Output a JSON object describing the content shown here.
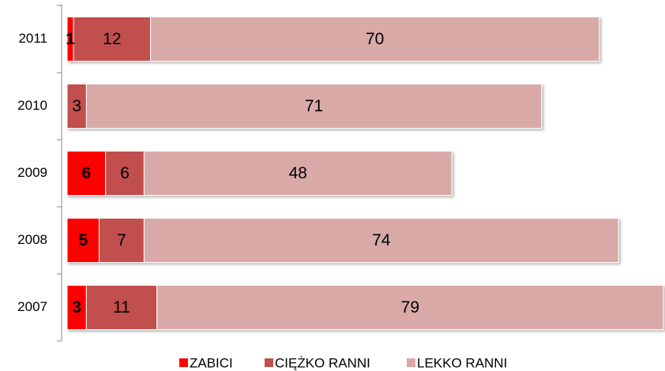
{
  "chart_data": {
    "type": "stacked-barh",
    "categories": [
      "2011",
      "2010",
      "2009",
      "2008",
      "2007"
    ],
    "series": [
      {
        "name": "ZABICI",
        "color": "#ff0000",
        "values": [
          1,
          null,
          6,
          5,
          3
        ]
      },
      {
        "name": "CIĘŻKO RANNI",
        "color": "#c0504d",
        "values": [
          12,
          3,
          6,
          7,
          11
        ]
      },
      {
        "name": "LEKKO RANNI",
        "color": "#d9a9a8",
        "values": [
          70,
          71,
          48,
          74,
          79
        ]
      }
    ]
  }
}
